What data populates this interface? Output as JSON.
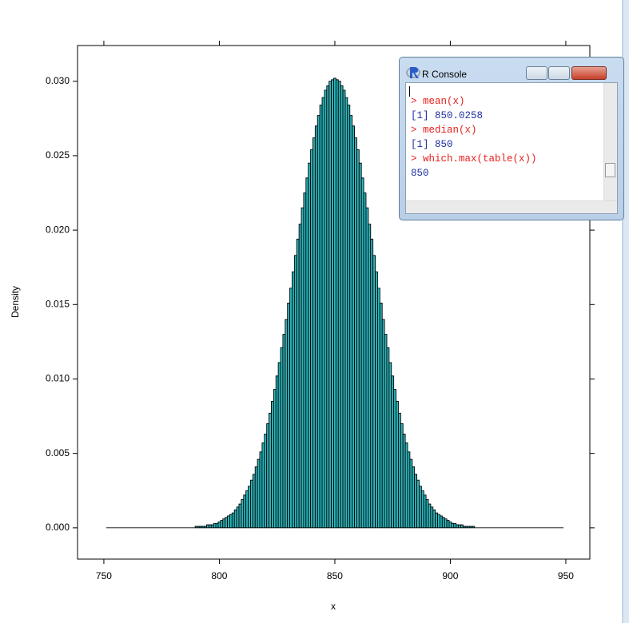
{
  "chart_data": {
    "type": "histogram",
    "xlabel": "x",
    "ylabel": "Density",
    "bins": [
      751,
      789.5,
      790.5,
      791.5,
      792.5,
      793.5,
      794.5,
      795.5,
      796.5,
      797.5,
      798.5,
      799.5,
      800.5,
      801.5,
      802.5,
      803.5,
      804.5,
      805.5,
      806.5,
      807.5,
      808.5,
      809.5,
      810.5,
      811.5,
      812.5,
      813.5,
      814.5,
      815.5,
      816.5,
      817.5,
      818.5,
      819.5,
      820.5,
      821.5,
      822.5,
      823.5,
      824.5,
      825.5,
      826.5,
      827.5,
      828.5,
      829.5,
      830.5,
      831.5,
      832.5,
      833.5,
      834.5,
      835.5,
      836.5,
      837.5,
      838.5,
      839.5,
      840.5,
      841.5,
      842.5,
      843.5,
      844.5,
      845.5,
      846.5,
      847.5,
      848.5,
      849.5,
      850.5,
      851.5,
      852.5,
      853.5,
      854.5,
      855.5,
      856.5,
      857.5,
      858.5,
      859.5,
      860.5,
      861.5,
      862.5,
      863.5,
      864.5,
      865.5,
      866.5,
      867.5,
      868.5,
      869.5,
      870.5,
      871.5,
      872.5,
      873.5,
      874.5,
      875.5,
      876.5,
      877.5,
      878.5,
      879.5,
      880.5,
      881.5,
      882.5,
      883.5,
      884.5,
      885.5,
      886.5,
      887.5,
      888.5,
      889.5,
      890.5,
      891.5,
      892.5,
      893.5,
      894.5,
      895.5,
      896.5,
      897.5,
      898.5,
      899.5,
      900.5,
      901.5,
      902.5,
      903.5,
      904.5,
      905.5,
      906.5,
      907.5,
      908.5,
      909.5,
      910.5,
      949
    ],
    "values": [
      0,
      0.0001,
      0.0001,
      0.0001,
      0.0001,
      0.0001,
      0.0002,
      0.0002,
      0.0002,
      0.0003,
      0.0003,
      0.0004,
      0.0005,
      0.0006,
      0.0007,
      0.0008,
      0.0009,
      0.001,
      0.0012,
      0.0014,
      0.0016,
      0.0019,
      0.0022,
      0.0025,
      0.0028,
      0.0032,
      0.0036,
      0.0041,
      0.0046,
      0.0051,
      0.0057,
      0.0063,
      0.007,
      0.0077,
      0.0085,
      0.0093,
      0.0102,
      0.0111,
      0.0121,
      0.013,
      0.014,
      0.0151,
      0.0161,
      0.0172,
      0.0183,
      0.0194,
      0.0204,
      0.0215,
      0.0225,
      0.0235,
      0.0245,
      0.0254,
      0.0262,
      0.027,
      0.0277,
      0.0284,
      0.0289,
      0.0294,
      0.0297,
      0.03,
      0.0301,
      0.0302,
      0.0301,
      0.03,
      0.0297,
      0.0294,
      0.0289,
      0.0284,
      0.0277,
      0.027,
      0.0262,
      0.0254,
      0.0245,
      0.0235,
      0.0225,
      0.0215,
      0.0204,
      0.0194,
      0.0183,
      0.0172,
      0.0161,
      0.0151,
      0.014,
      0.013,
      0.0121,
      0.0111,
      0.0102,
      0.0093,
      0.0085,
      0.0077,
      0.007,
      0.0063,
      0.0057,
      0.0051,
      0.0046,
      0.0041,
      0.0036,
      0.0032,
      0.0028,
      0.0025,
      0.0022,
      0.0019,
      0.0016,
      0.0014,
      0.0012,
      0.001,
      0.0009,
      0.0008,
      0.0007,
      0.0006,
      0.0005,
      0.0004,
      0.0003,
      0.0003,
      0.0002,
      0.0002,
      0.0002,
      0.0001,
      0.0001,
      0.0001,
      0.0001,
      0.0001,
      0
    ],
    "color": "#2bb7bd",
    "xlim": [
      738.6,
      960.4
    ],
    "xticks": [
      750,
      800,
      850,
      900,
      950
    ],
    "ylim": [
      -0.0021,
      0.0324
    ],
    "yticks": [
      {
        "value": 0,
        "label": "0.000"
      },
      {
        "value": 0.005,
        "label": "0.005"
      },
      {
        "value": 0.01,
        "label": "0.010"
      },
      {
        "value": 0.015,
        "label": "0.015"
      },
      {
        "value": 0.02,
        "label": "0.020"
      },
      {
        "value": 0.025,
        "label": "0.025"
      },
      {
        "value": 0.03,
        "label": "0.030"
      }
    ]
  },
  "console": {
    "title": "R Console",
    "lines": [
      {
        "text": "> mean(x)",
        "color": "#e8201e"
      },
      {
        "text": "[1] 850.0258",
        "color": "#1f2fa0"
      },
      {
        "text": "> median(x)",
        "color": "#e8201e"
      },
      {
        "text": "[1] 850",
        "color": "#1f2fa0"
      },
      {
        "text": "> which.max(table(x))",
        "color": "#e8201e"
      },
      {
        "text": "850",
        "color": "#1f2fa0"
      }
    ]
  }
}
